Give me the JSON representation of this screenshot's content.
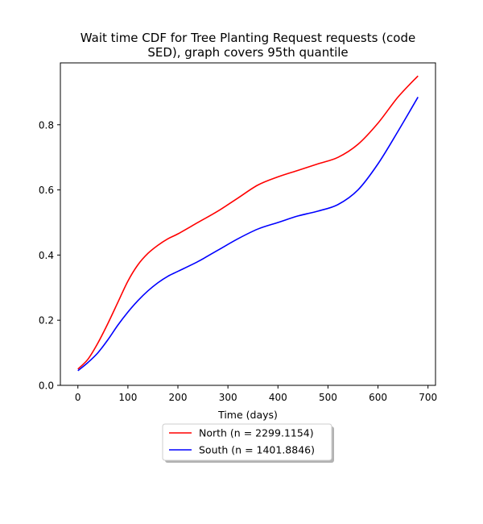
{
  "chart_data": {
    "type": "line",
    "title_line1": "Wait time CDF for Tree Planting Request  requests (code",
    "title_line2": "SED), graph covers 95th quantile",
    "xlabel": "Time (days)",
    "ylabel": "",
    "xlim": [
      -35,
      715
    ],
    "ylim": [
      0,
      0.99
    ],
    "x_ticks": [
      0,
      100,
      200,
      300,
      400,
      500,
      600,
      700
    ],
    "y_ticks": [
      0.0,
      0.2,
      0.4,
      0.6,
      0.8
    ],
    "x_tick_labels": [
      "0",
      "100",
      "200",
      "300",
      "400",
      "500",
      "600",
      "700"
    ],
    "y_tick_labels": [
      "0.0",
      "0.2",
      "0.4",
      "0.6",
      "0.8"
    ],
    "grid": false,
    "legend_position": "below plot, centered",
    "x": [
      0,
      20,
      40,
      60,
      80,
      100,
      120,
      140,
      160,
      180,
      200,
      240,
      280,
      320,
      360,
      400,
      440,
      480,
      520,
      560,
      600,
      640,
      680
    ],
    "series": [
      {
        "name": "North (n = 2299.1154)",
        "color": "#ff0000",
        "values": [
          0.05,
          0.08,
          0.13,
          0.19,
          0.255,
          0.32,
          0.37,
          0.405,
          0.43,
          0.45,
          0.465,
          0.5,
          0.535,
          0.575,
          0.615,
          0.64,
          0.66,
          0.68,
          0.7,
          0.74,
          0.805,
          0.885,
          0.95
        ]
      },
      {
        "name": "South (n = 1401.8846)",
        "color": "#0000ff",
        "values": [
          0.045,
          0.07,
          0.1,
          0.14,
          0.185,
          0.225,
          0.26,
          0.29,
          0.315,
          0.335,
          0.35,
          0.38,
          0.415,
          0.45,
          0.48,
          0.5,
          0.52,
          0.535,
          0.555,
          0.6,
          0.68,
          0.78,
          0.885
        ]
      }
    ]
  }
}
